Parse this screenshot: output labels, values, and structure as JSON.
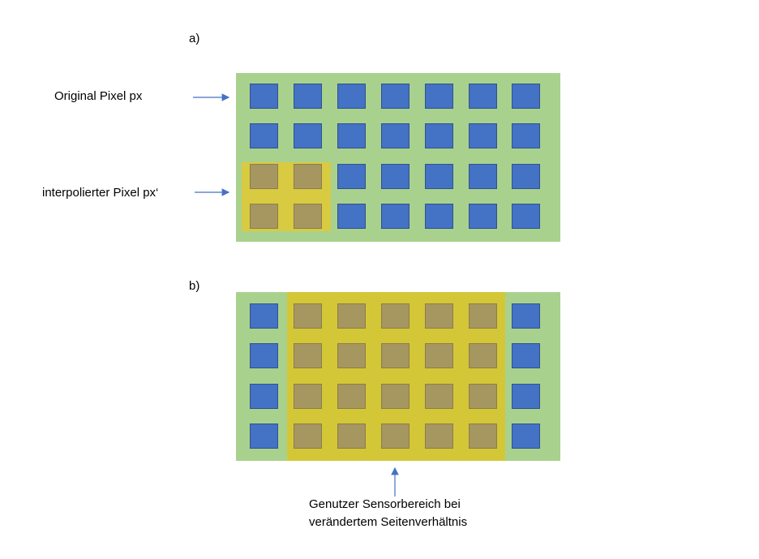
{
  "panel_a": {
    "tag": "a)",
    "label_original": "Original Pixel px",
    "label_interpolated": "interpolierter Pixel px‘",
    "rows": 4,
    "cols": 7,
    "interpolated_cols": 2,
    "interpolated_rows": 2
  },
  "panel_b": {
    "tag": "b)",
    "rows": 4,
    "cols": 7,
    "caption_line1": "Genutzer Sensorbereich bei",
    "caption_line2": "verändertem Seitenverhältnis"
  },
  "colors": {
    "sensor_green": "#a9d18e",
    "pixel_blue": "#4472c4",
    "pixel_border": "#2f528f",
    "used_area_yellow": "#d4c232",
    "interpolated_pixel": "#a5975f",
    "arrow": "#4472c4"
  }
}
